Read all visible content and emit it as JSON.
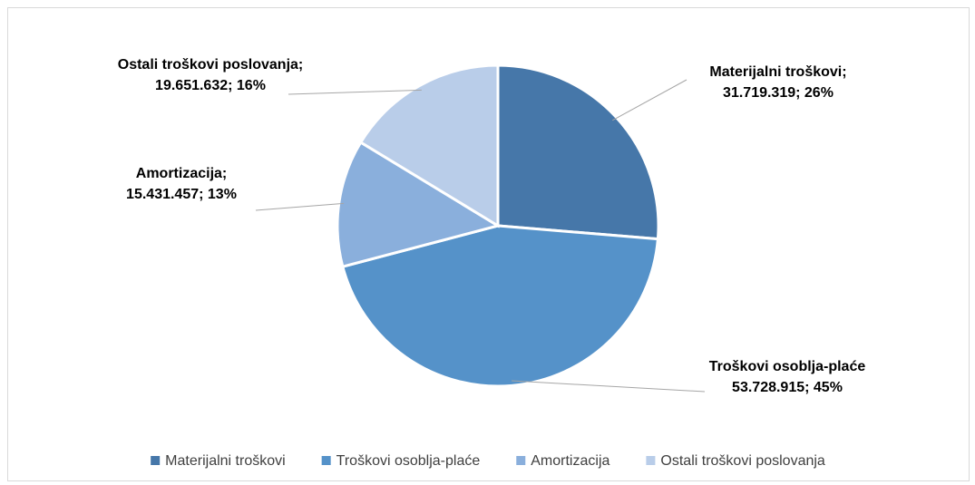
{
  "chart_data": {
    "type": "pie",
    "categories": [
      "Materijalni troškovi",
      "Troškovi osoblja-plaće",
      "Amortizacija",
      "Ostali troškovi poslovanja"
    ],
    "values": [
      31719319,
      53728915,
      15431457,
      19651632
    ],
    "value_labels": [
      "31.719.319",
      "53.728.915",
      "15.431.457",
      "19.651.632"
    ],
    "percents": [
      26,
      45,
      13,
      16
    ],
    "percent_labels": [
      "26%",
      "45%",
      "13%",
      "16%"
    ],
    "label_separator": "; ",
    "colors": [
      "#4677a9",
      "#5592c9",
      "#8aafdc",
      "#b9cde9"
    ],
    "legend": "bottom"
  }
}
